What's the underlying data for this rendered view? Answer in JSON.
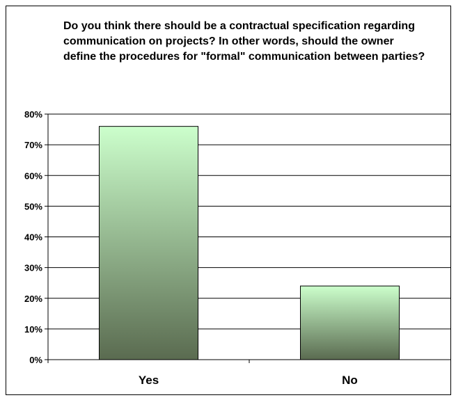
{
  "chart_data": {
    "type": "bar",
    "title": "Do you think there should be a contractual specification regarding communication on projects?  In other words, should the owner define the procedures for \"formal\" communication between parties?",
    "categories": [
      "Yes",
      "No"
    ],
    "values": [
      0.76,
      0.24
    ],
    "ylim": [
      0,
      0.8
    ],
    "y_ticks": [
      "0%",
      "10%",
      "20%",
      "30%",
      "40%",
      "50%",
      "60%",
      "70%",
      "80%"
    ],
    "xlabel": "",
    "ylabel": "",
    "grid": true,
    "legend": "none",
    "colors": {
      "bar_top": "#ccffcc",
      "bar_bottom": "#5a6b50",
      "gridline": "#000000"
    }
  }
}
